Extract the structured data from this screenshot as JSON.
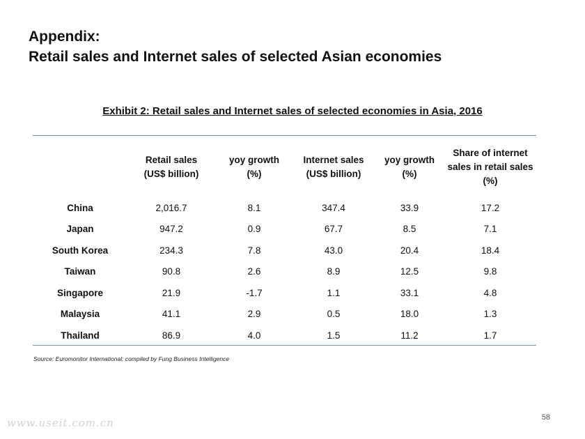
{
  "slide": {
    "title_line1": "Appendix:",
    "title_line2": "Retail sales and Internet sales of selected Asian economies",
    "exhibit_title": "Exhibit 2: Retail sales and Internet sales of selected economies in Asia, 2016",
    "source": "Source: Euromonitor International; compiled by Fung Business Intelligence",
    "page_number": "58",
    "watermark": "www.useit.com.cn"
  },
  "table": {
    "headers": [
      {
        "line1": "Retail sales",
        "line2": "(US$ billion)",
        "line3": ""
      },
      {
        "line1": "yoy growth",
        "line2": "(%)",
        "line3": ""
      },
      {
        "line1": "Internet sales",
        "line2": "(US$ billion)",
        "line3": ""
      },
      {
        "line1": "yoy growth",
        "line2": "(%)",
        "line3": ""
      },
      {
        "line1": "Share of internet",
        "line2": "sales in retail sales",
        "line3": "(%)"
      }
    ],
    "rows": [
      {
        "label": "China",
        "values": [
          "2,016.7",
          "8.1",
          "347.4",
          "33.9",
          "17.2"
        ]
      },
      {
        "label": "Japan",
        "values": [
          "947.2",
          "0.9",
          "67.7",
          "8.5",
          "7.1"
        ]
      },
      {
        "label": "South Korea",
        "values": [
          "234.3",
          "7.8",
          "43.0",
          "20.4",
          "18.4"
        ]
      },
      {
        "label": "Taiwan",
        "values": [
          "90.8",
          "2.6",
          "8.9",
          "12.5",
          "9.8"
        ]
      },
      {
        "label": "Singapore",
        "values": [
          "21.9",
          "-1.7",
          "1.1",
          "33.1",
          "4.8"
        ]
      },
      {
        "label": "Malaysia",
        "values": [
          "41.1",
          "2.9",
          "0.5",
          "18.0",
          "1.3"
        ]
      },
      {
        "label": "Thailand",
        "values": [
          "86.9",
          "4.0",
          "1.5",
          "11.2",
          "1.7"
        ]
      }
    ]
  }
}
